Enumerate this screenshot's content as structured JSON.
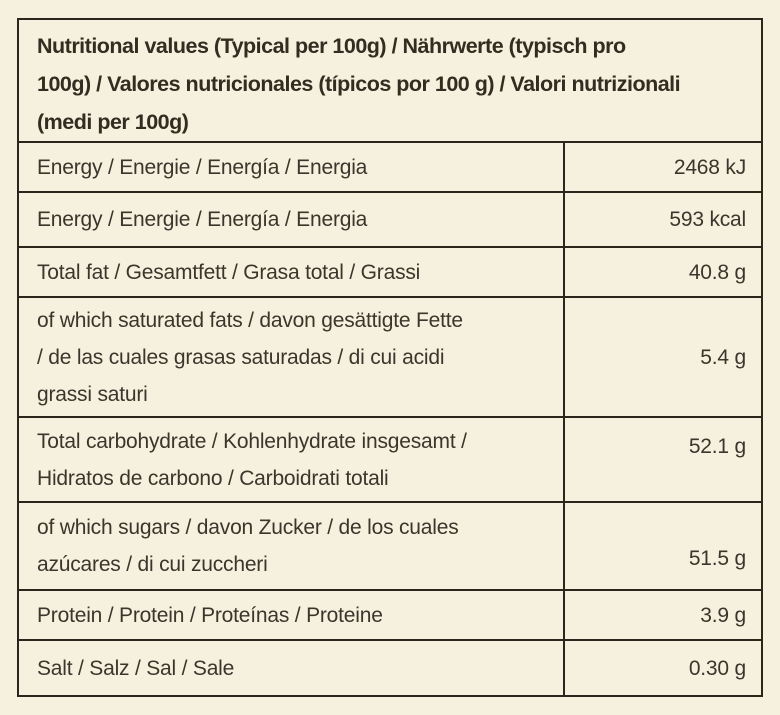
{
  "label": {
    "title": "Nutritional values (Typical per 100g) / Nährwerte (typisch pro\n100g) / Valores nutricionales (típicos por 100 g) / Valori nutrizionali\n(medi per 100g)",
    "rows": [
      {
        "name": "Energy / Energie / Energía / Energia",
        "value": "2468 kJ"
      },
      {
        "name": "Energy / Energie / Energía / Energia",
        "value": "593 kcal"
      },
      {
        "name": "Total fat / Gesamtfett / Grasa total / Grassi",
        "value": "40.8 g"
      },
      {
        "name": "of which saturated fats /  davon gesättigte Fette\n/ de las cuales grasas saturadas / di cui acidi\ngrassi saturi",
        "value": "5.4 g"
      },
      {
        "name": "Total carbohydrate / Kohlenhydrate insgesamt /\nHidratos de carbono / Carboidrati totali",
        "value": "52.1 g"
      },
      {
        "name": "of which sugars / davon Zucker / de los cuales\nazúcares / di cui zuccheri",
        "value": "51.5 g"
      },
      {
        "name": "Protein / Protein / Proteínas / Proteine",
        "value": "3.9 g"
      },
      {
        "name": "Salt / Salz / Sal / Sale",
        "value": "0.30 g"
      }
    ]
  },
  "colors": {
    "background": "#f5f1de",
    "line": "#2a261c",
    "text": "#3a362c"
  }
}
